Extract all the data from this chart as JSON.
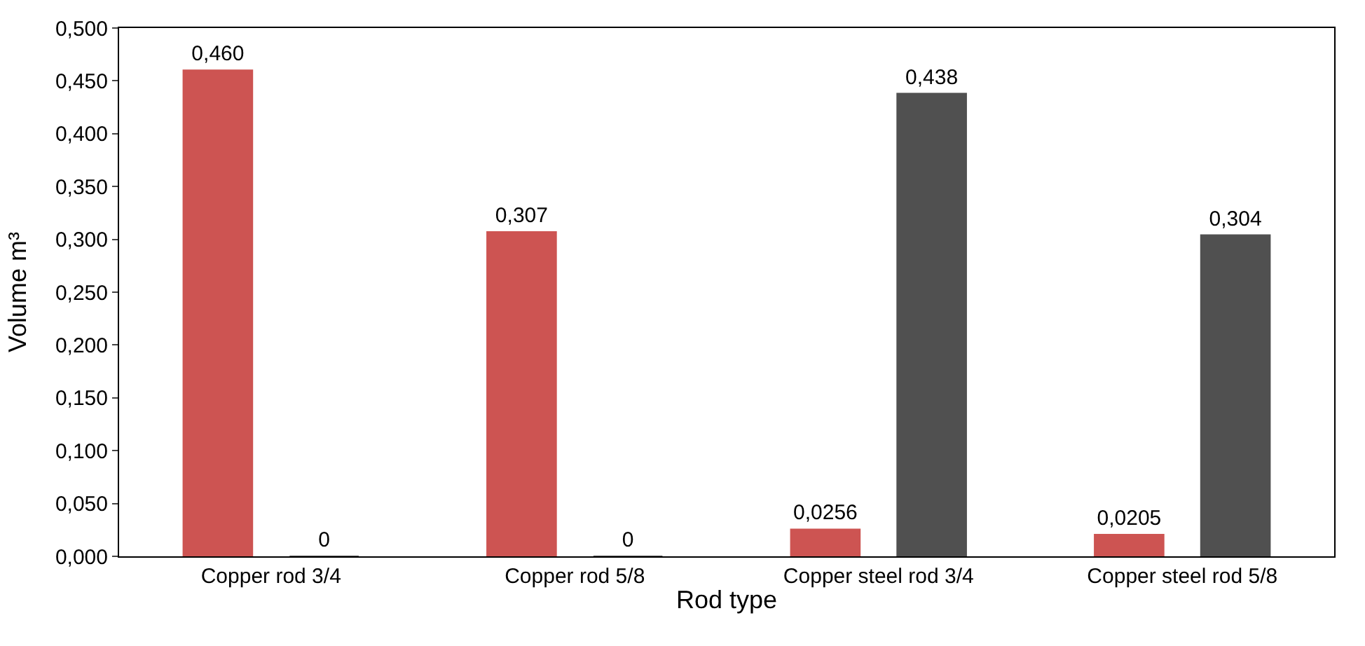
{
  "chart_data": {
    "type": "bar",
    "xlabel": "Rod type",
    "ylabel": "Volume m³",
    "categories": [
      "Copper rod 3/4",
      "Copper rod 5/8",
      "Copper steel rod 3/4",
      "Copper steel rod 5/8"
    ],
    "series": [
      {
        "color": "#cd5452",
        "values": [
          0.46,
          0.307,
          0.0256,
          0.0205
        ],
        "value_labels": [
          "0,460",
          "0,307",
          "0,0256",
          "0,0205"
        ]
      },
      {
        "color": "#505050",
        "values": [
          0,
          0,
          0.438,
          0.304
        ],
        "value_labels": [
          "0",
          "0",
          "0,438",
          "0,304"
        ]
      }
    ],
    "ylim": [
      0,
      0.5
    ],
    "yticks": [
      {
        "value": 0,
        "label": "0,000"
      },
      {
        "value": 0.05,
        "label": "0,050"
      },
      {
        "value": 0.1,
        "label": "0,100"
      },
      {
        "value": 0.15,
        "label": "0,150"
      },
      {
        "value": 0.2,
        "label": "0,200"
      },
      {
        "value": 0.25,
        "label": "0,250"
      },
      {
        "value": 0.3,
        "label": "0,300"
      },
      {
        "value": 0.35,
        "label": "0,350"
      },
      {
        "value": 0.4,
        "label": "0,400"
      },
      {
        "value": 0.45,
        "label": "0,450"
      },
      {
        "value": 0.5,
        "label": "0,500"
      }
    ]
  }
}
